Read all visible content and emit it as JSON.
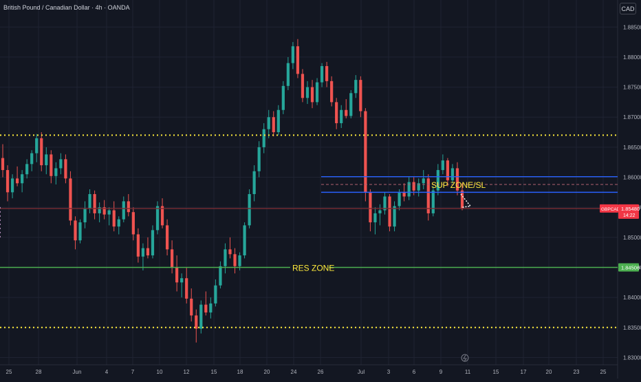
{
  "header": {
    "title": "British Pound / Canadian Dollar · 4h · OANDA",
    "currency": "CAD"
  },
  "colors": {
    "background": "#131722",
    "up": "#26a69a",
    "down": "#ef5350",
    "zone_blue": "#2962ff",
    "res_green": "#4caf50",
    "dotted_yellow": "#ffeb3b",
    "price_red": "#f23645"
  },
  "chart_data": {
    "type": "candlestick",
    "symbol": "GBPCAD",
    "timeframe": "4h",
    "ylim": [
      1.8265,
      1.8895
    ],
    "y_ticks": [
      "1.88500",
      "1.88000",
      "1.87500",
      "1.87000",
      "1.86500",
      "1.86000",
      "1.85500",
      "1.85000",
      "1.84500",
      "1.84000",
      "1.83500",
      "1.83000"
    ],
    "x_ticks": [
      "25",
      "28",
      "Jun",
      "4",
      "7",
      "10",
      "12",
      "15",
      "18",
      "20",
      "24",
      "26",
      "Jul",
      "3",
      "6",
      "9",
      "11",
      "15",
      "17",
      "20",
      "23",
      "25"
    ],
    "candles": [
      [
        1.8632,
        1.8655,
        1.86,
        1.8612
      ],
      [
        1.8612,
        1.862,
        1.856,
        1.8575
      ],
      [
        1.8575,
        1.8605,
        1.8565,
        1.8598
      ],
      [
        1.8598,
        1.8618,
        1.8585,
        1.859
      ],
      [
        1.859,
        1.8612,
        1.8575,
        1.8605
      ],
      [
        1.8605,
        1.863,
        1.8598,
        1.8622
      ],
      [
        1.8622,
        1.8645,
        1.861,
        1.864
      ],
      [
        1.864,
        1.8672,
        1.8625,
        1.8665
      ],
      [
        1.8665,
        1.8675,
        1.861,
        1.862
      ],
      [
        1.862,
        1.865,
        1.8605,
        1.8638
      ],
      [
        1.8638,
        1.8645,
        1.859,
        1.8602
      ],
      [
        1.8602,
        1.8625,
        1.8588,
        1.8615
      ],
      [
        1.8615,
        1.864,
        1.8605,
        1.863
      ],
      [
        1.863,
        1.8638,
        1.859,
        1.8598
      ],
      [
        1.8598,
        1.861,
        1.852,
        1.8528
      ],
      [
        1.8528,
        1.8535,
        1.848,
        1.8495
      ],
      [
        1.8495,
        1.853,
        1.849,
        1.8525
      ],
      [
        1.8525,
        1.856,
        1.8515,
        1.8548
      ],
      [
        1.8548,
        1.858,
        1.854,
        1.8572
      ],
      [
        1.8572,
        1.8578,
        1.853,
        1.854
      ],
      [
        1.854,
        1.8558,
        1.8525,
        1.855
      ],
      [
        1.855,
        1.8562,
        1.853,
        1.8538
      ],
      [
        1.8538,
        1.855,
        1.852,
        1.8545
      ],
      [
        1.8545,
        1.856,
        1.851,
        1.8518
      ],
      [
        1.8518,
        1.8535,
        1.8505,
        1.853
      ],
      [
        1.853,
        1.8568,
        1.8525,
        1.856
      ],
      [
        1.856,
        1.8572,
        1.8535,
        1.8542
      ],
      [
        1.8542,
        1.855,
        1.8495,
        1.8505
      ],
      [
        1.8505,
        1.8515,
        1.8458,
        1.8468
      ],
      [
        1.8468,
        1.849,
        1.8445,
        1.8482
      ],
      [
        1.8482,
        1.85,
        1.8465,
        1.847
      ],
      [
        1.847,
        1.852,
        1.8465,
        1.8512
      ],
      [
        1.8512,
        1.856,
        1.8505,
        1.8552
      ],
      [
        1.8552,
        1.8565,
        1.8515,
        1.852
      ],
      [
        1.852,
        1.853,
        1.847,
        1.848
      ],
      [
        1.848,
        1.8495,
        1.844,
        1.845
      ],
      [
        1.845,
        1.847,
        1.841,
        1.8425
      ],
      [
        1.8425,
        1.844,
        1.84,
        1.8432
      ],
      [
        1.8432,
        1.845,
        1.839,
        1.8398
      ],
      [
        1.8398,
        1.8415,
        1.836,
        1.837
      ],
      [
        1.837,
        1.838,
        1.8325,
        1.8348
      ],
      [
        1.8348,
        1.8395,
        1.834,
        1.8388
      ],
      [
        1.8388,
        1.841,
        1.837,
        1.8375
      ],
      [
        1.8375,
        1.84,
        1.8365,
        1.839
      ],
      [
        1.839,
        1.843,
        1.8385,
        1.842
      ],
      [
        1.842,
        1.846,
        1.8415,
        1.8452
      ],
      [
        1.8452,
        1.849,
        1.844,
        1.848
      ],
      [
        1.848,
        1.85,
        1.8465,
        1.8472
      ],
      [
        1.8472,
        1.8482,
        1.844,
        1.8452
      ],
      [
        1.8452,
        1.8475,
        1.8445,
        1.847
      ],
      [
        1.847,
        1.8525,
        1.8465,
        1.852
      ],
      [
        1.852,
        1.858,
        1.8515,
        1.8572
      ],
      [
        1.8572,
        1.862,
        1.856,
        1.861
      ],
      [
        1.861,
        1.866,
        1.86,
        1.865
      ],
      [
        1.865,
        1.869,
        1.864,
        1.868
      ],
      [
        1.868,
        1.8712,
        1.8665,
        1.87
      ],
      [
        1.87,
        1.871,
        1.8668,
        1.8675
      ],
      [
        1.8675,
        1.872,
        1.867,
        1.8712
      ],
      [
        1.8712,
        1.876,
        1.8705,
        1.8752
      ],
      [
        1.8752,
        1.88,
        1.8745,
        1.879
      ],
      [
        1.879,
        1.8825,
        1.878,
        1.8818
      ],
      [
        1.8818,
        1.883,
        1.8765,
        1.8772
      ],
      [
        1.8772,
        1.878,
        1.8725,
        1.8732
      ],
      [
        1.8732,
        1.876,
        1.8722,
        1.875
      ],
      [
        1.875,
        1.8762,
        1.8715,
        1.8725
      ],
      [
        1.8725,
        1.8765,
        1.872,
        1.8758
      ],
      [
        1.8758,
        1.879,
        1.875,
        1.8785
      ],
      [
        1.8785,
        1.8792,
        1.875,
        1.876
      ],
      [
        1.876,
        1.8768,
        1.8718,
        1.8725
      ],
      [
        1.8725,
        1.8732,
        1.868,
        1.869
      ],
      [
        1.869,
        1.872,
        1.8682,
        1.8712
      ],
      [
        1.8712,
        1.873,
        1.8698,
        1.8702
      ],
      [
        1.8702,
        1.8745,
        1.8698,
        1.874
      ],
      [
        1.874,
        1.877,
        1.8732,
        1.8762
      ],
      [
        1.8762,
        1.8768,
        1.87,
        1.871
      ],
      [
        1.871,
        1.8715,
        1.856,
        1.8575
      ],
      [
        1.8575,
        1.858,
        1.851,
        1.8525
      ],
      [
        1.8525,
        1.855,
        1.8505,
        1.854
      ],
      [
        1.854,
        1.8555,
        1.852,
        1.8545
      ],
      [
        1.8545,
        1.8575,
        1.8538,
        1.8568
      ],
      [
        1.8568,
        1.8572,
        1.851,
        1.8518
      ],
      [
        1.8518,
        1.856,
        1.851,
        1.8552
      ],
      [
        1.8552,
        1.858,
        1.8545,
        1.8575
      ],
      [
        1.8575,
        1.859,
        1.856,
        1.8568
      ],
      [
        1.8568,
        1.86,
        1.8562,
        1.8592
      ],
      [
        1.8592,
        1.86,
        1.857,
        1.8578
      ],
      [
        1.8578,
        1.8598,
        1.8568,
        1.859
      ],
      [
        1.859,
        1.8612,
        1.858,
        1.8598
      ],
      [
        1.8598,
        1.8605,
        1.8528,
        1.854
      ],
      [
        1.854,
        1.8585,
        1.8535,
        1.8578
      ],
      [
        1.8578,
        1.8622,
        1.857,
        1.8612
      ],
      [
        1.8612,
        1.8638,
        1.8605,
        1.8628
      ],
      [
        1.8628,
        1.8632,
        1.8585,
        1.8595
      ],
      [
        1.8595,
        1.8622,
        1.859,
        1.8615
      ],
      [
        1.8615,
        1.8625,
        1.857,
        1.8578
      ],
      [
        1.8578,
        1.859,
        1.8545,
        1.8548
      ]
    ],
    "levels": [
      {
        "price": 1.867,
        "style": "dotted",
        "color": "#ffeb3b"
      },
      {
        "price": 1.835,
        "style": "dotted",
        "color": "#ffeb3b"
      },
      {
        "price": 1.845,
        "style": "solid",
        "color": "#4caf50"
      },
      {
        "price": 1.8601,
        "style": "solid",
        "color": "#2962ff",
        "x_from_date": "24"
      },
      {
        "price": 1.8575,
        "style": "solid",
        "color": "#2962ff",
        "x_from_date": "24"
      },
      {
        "price": 1.8588,
        "style": "dashed",
        "color": "#b06070",
        "x_from_date": "24"
      },
      {
        "price": 1.8548,
        "style": "solid",
        "color": "#7a2c33"
      }
    ],
    "trendline": {
      "style": "dotted",
      "color": "#b58dbb",
      "points": [
        [
          1.85,
          "2"
        ],
        [
          1.8553,
          "13"
        ]
      ]
    },
    "zone_labels": [
      {
        "text": "SUP ZONE/SL",
        "price": 1.8588
      },
      {
        "text": "RES ZONE",
        "price": 1.845
      }
    ],
    "price_tags": {
      "symbol": "GBPCAD",
      "current_price": "1.85480",
      "countdown": "14:22",
      "res_price": "1.84506"
    }
  }
}
